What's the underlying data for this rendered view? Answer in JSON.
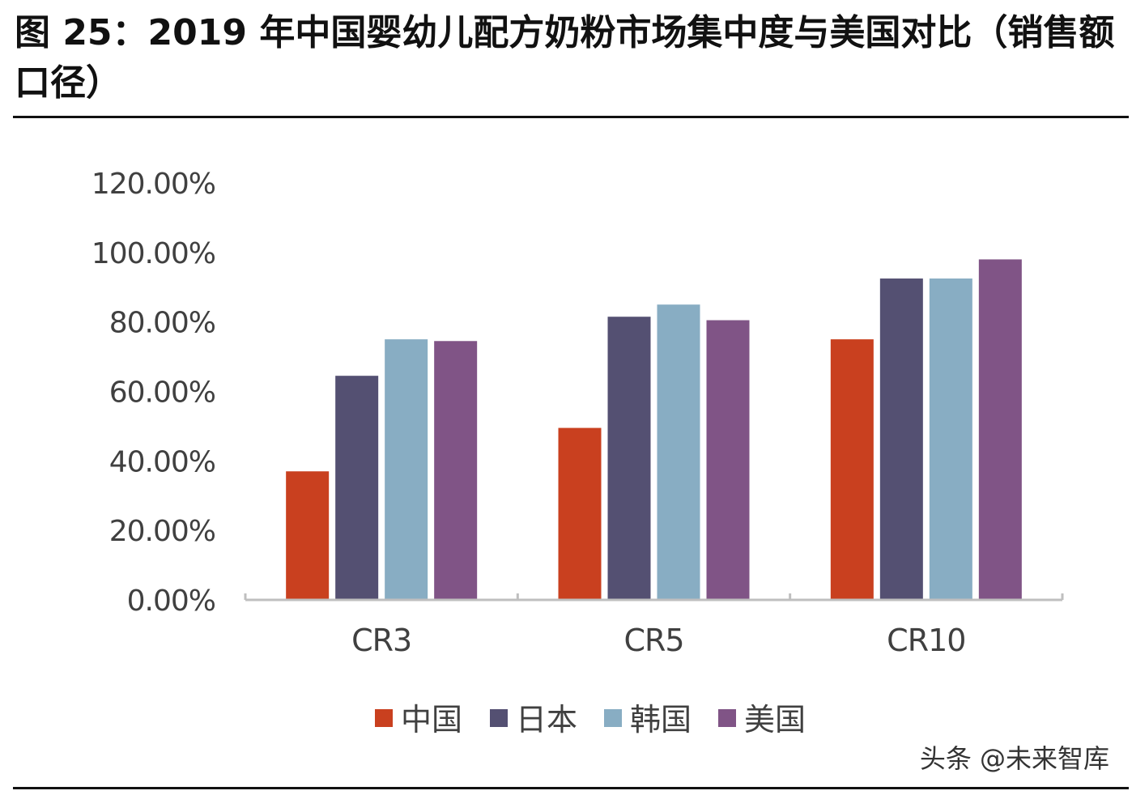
{
  "header": {
    "title": "图 25：2019 年中国婴幼儿配方奶粉市场集中度与美国对比（销售额口径）"
  },
  "watermark": "头条 @未来智库",
  "chart_data": {
    "type": "bar",
    "title": "图 25：2019 年中国婴幼儿配方奶粉市场集中度与美国对比（销售额口径）",
    "xlabel": "",
    "ylabel": "",
    "categories": [
      "CR3",
      "CR5",
      "CR10"
    ],
    "series": [
      {
        "name": "中国",
        "color": "#C9401F",
        "values": [
          37,
          49.5,
          75
        ]
      },
      {
        "name": "日本",
        "color": "#545072",
        "values": [
          64.5,
          81.5,
          92.5
        ]
      },
      {
        "name": "韩国",
        "color": "#88ADC3",
        "values": [
          75,
          85,
          92.5
        ]
      },
      {
        "name": "美国",
        "color": "#805486",
        "values": [
          74.5,
          80.5,
          98
        ]
      }
    ],
    "ylim": [
      0,
      120
    ],
    "yticks": [
      0,
      20,
      40,
      60,
      80,
      100,
      120
    ],
    "ytick_labels": [
      "0.00%",
      "20.00%",
      "40.00%",
      "60.00%",
      "80.00%",
      "100.00%",
      "120.00%"
    ],
    "grid": false,
    "legend_position": "bottom"
  }
}
